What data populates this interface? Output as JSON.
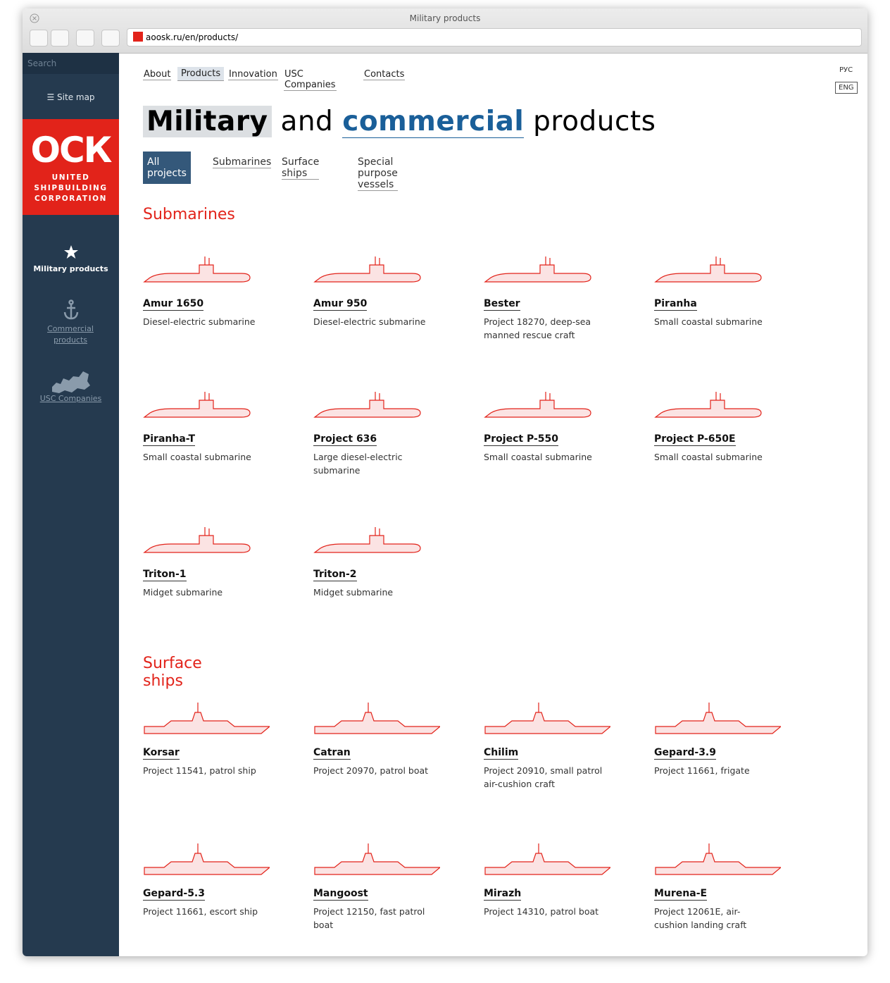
{
  "browser": {
    "title": "Military products",
    "url": "aoosk.ru/en/products/"
  },
  "sidebar": {
    "search": "Search",
    "site_map": "Site map",
    "logo": {
      "mark": "ОСК",
      "lines": [
        "UNITED",
        "SHIPBUILDING",
        "CORPORATION"
      ]
    },
    "links": [
      "Military products",
      "Commercial products",
      "USC Companies"
    ]
  },
  "nav": [
    "About",
    "Products",
    "Innovation",
    "USC Companies",
    "Contacts"
  ],
  "lang": [
    "РУС",
    "ENG"
  ],
  "heading": [
    "Military",
    "and",
    "commercial",
    "products"
  ],
  "filters": [
    "All projects",
    "Submarines",
    "Surface ships",
    "Special purpose vessels"
  ],
  "sections": [
    {
      "title": "Submarines",
      "items": [
        {
          "name": "Amur 1650",
          "desc": "Diesel-electric submarine"
        },
        {
          "name": "Amur 950",
          "desc": "Diesel-electric submarine"
        },
        {
          "name": "Bester",
          "desc": "Project 18270, deep-sea manned rescue craft"
        },
        {
          "name": "Piranha",
          "desc": "Small coastal submarine"
        },
        {
          "name": "Piranha-T",
          "desc": "Small coastal submarine"
        },
        {
          "name": "Project 636",
          "desc": "Large diesel-electric submarine"
        },
        {
          "name": "Project P-550",
          "desc": "Small coastal submarine"
        },
        {
          "name": "Project P-650E",
          "desc": "Small coastal submarine"
        },
        {
          "name": "Triton-1",
          "desc": "Midget submarine"
        },
        {
          "name": "Triton-2",
          "desc": "Midget submarine"
        }
      ]
    },
    {
      "title": "Surface ships",
      "items": [
        {
          "name": "Korsar",
          "desc": "Project 11541, patrol ship"
        },
        {
          "name": "Catran",
          "desc": "Project 20970, patrol boat"
        },
        {
          "name": "Chilim",
          "desc": "Project 20910, small patrol air-cushion craft"
        },
        {
          "name": "Gepard-3.9",
          "desc": "Project 11661, frigate"
        },
        {
          "name": "Gepard-5.3",
          "desc": "Project 11661, escort ship"
        },
        {
          "name": "Mangoost",
          "desc": "Project 12150, fast patrol boat"
        },
        {
          "name": "Mirazh",
          "desc": "Project 14310, patrol boat"
        },
        {
          "name": "Murena-E",
          "desc": "Project 12061E, air-cushion landing craft"
        }
      ]
    }
  ]
}
